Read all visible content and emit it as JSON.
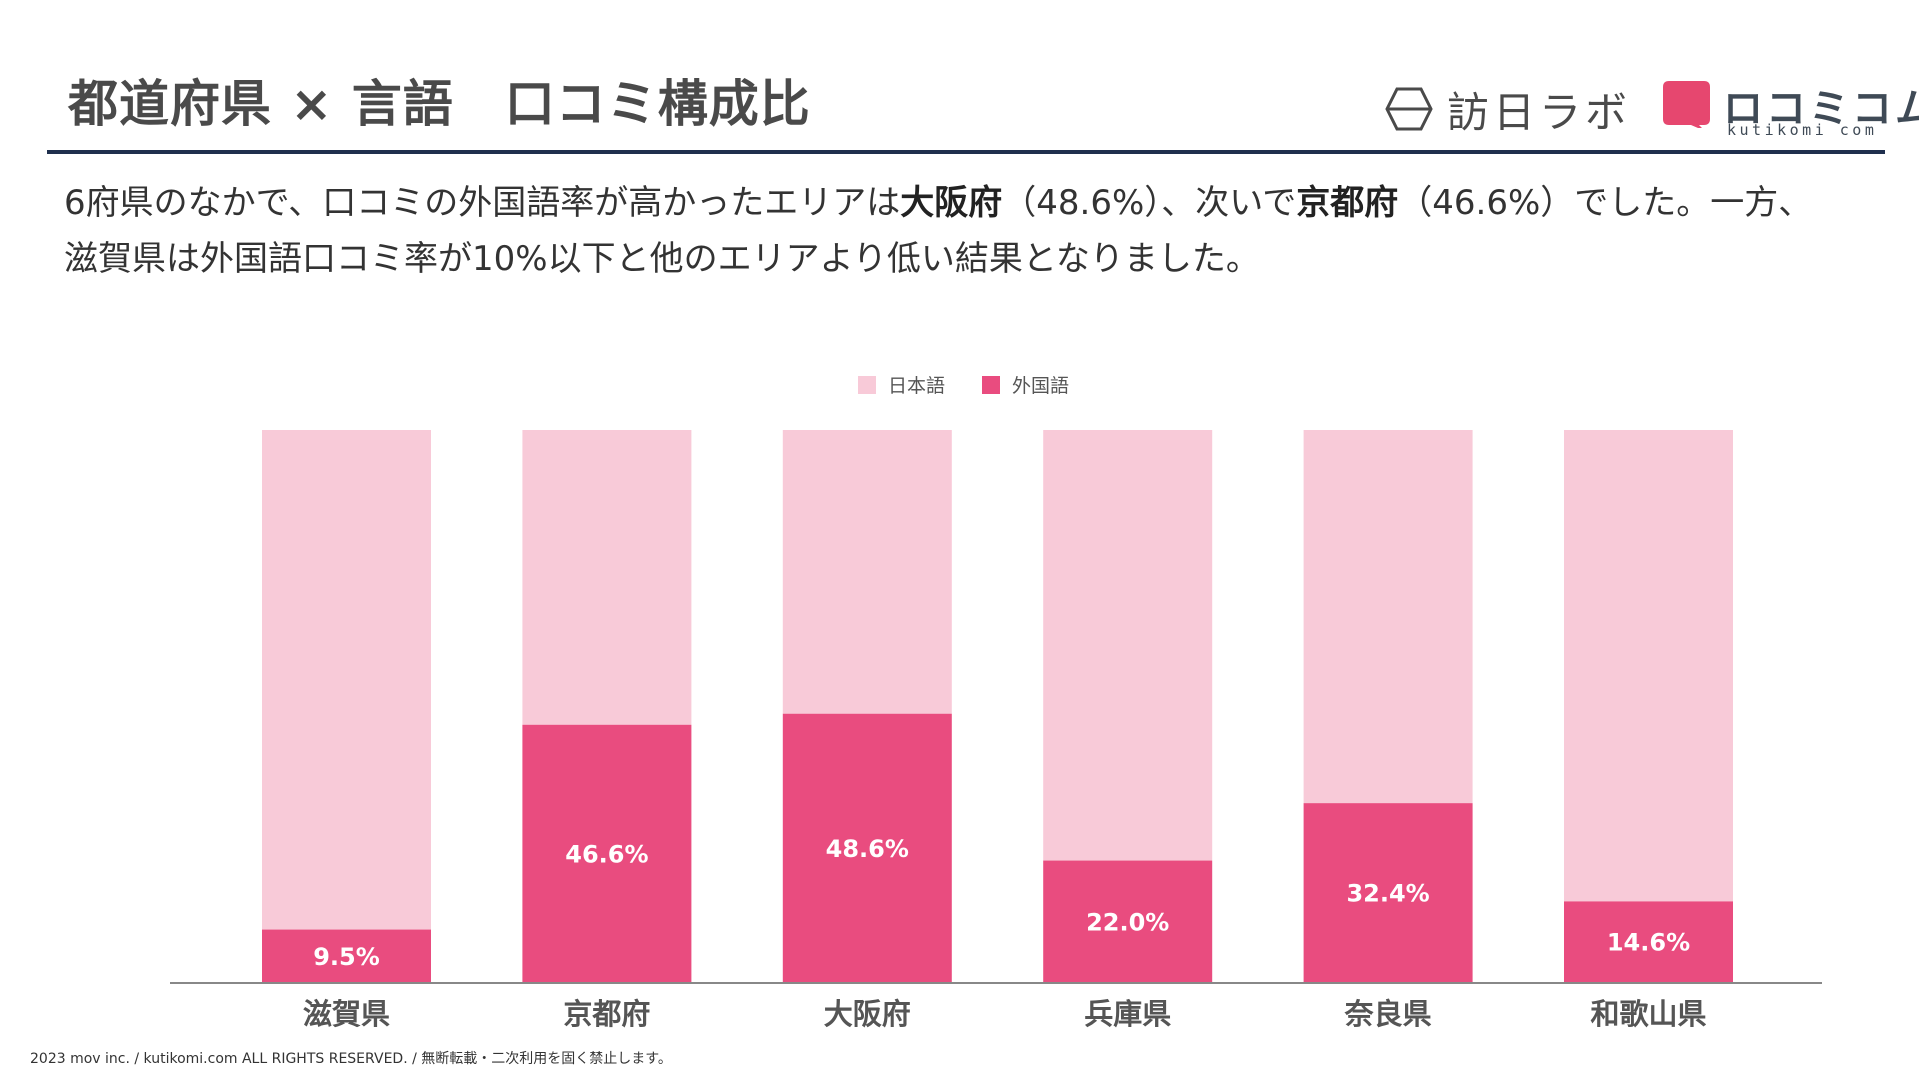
{
  "header": {
    "title": "都道府県 × 言語　口コミ構成比",
    "logo_houjin_text": "訪日ラボ",
    "logo_kuchikomi_kana": "ロコミコム",
    "logo_kuchikomi_roman": "kutikomi com"
  },
  "lead": {
    "p1": "6府県のなかで、口コミの外国語率が高かったエリアは",
    "osaka": "大阪府",
    "p2": "（48.6%）、次いで",
    "kyoto": "京都府",
    "p3": "（46.6%）でした。一方、",
    "p4": "滋賀県は外国語口コミ率が10%以下と他のエリアより低い結果となりました。"
  },
  "chart_data": {
    "type": "bar",
    "stacked": true,
    "percent_stacked": true,
    "categories": [
      "滋賀県",
      "京都府",
      "大阪府",
      "兵庫県",
      "奈良県",
      "和歌山県"
    ],
    "series": [
      {
        "name": "外国語",
        "values": [
          9.5,
          46.6,
          48.6,
          22.0,
          32.4,
          14.6
        ],
        "color": "#e94c7f"
      },
      {
        "name": "日本語",
        "values": [
          90.5,
          53.4,
          51.4,
          78.0,
          67.6,
          85.4
        ],
        "color": "#f8cad8"
      }
    ],
    "data_labels": [
      "9.5%",
      "46.6%",
      "48.6%",
      "22.0%",
      "32.4%",
      "14.6%"
    ],
    "legend": {
      "position": "top-center",
      "entries": [
        "日本語",
        "外国語"
      ]
    },
    "ylim": [
      0,
      100
    ],
    "title": "",
    "xlabel": "",
    "ylabel": "",
    "grid": false
  },
  "footer": {
    "copyright": "2023 mov inc. / kutikomi.com ALL RIGHTS RESERVED. / 無断転載・二次利用を固く禁止します。"
  },
  "colors": {
    "accent": "#e94c7f",
    "light": "#f8cad8",
    "rule": "#1f2f4d",
    "logo_mark": "#e6476f"
  }
}
